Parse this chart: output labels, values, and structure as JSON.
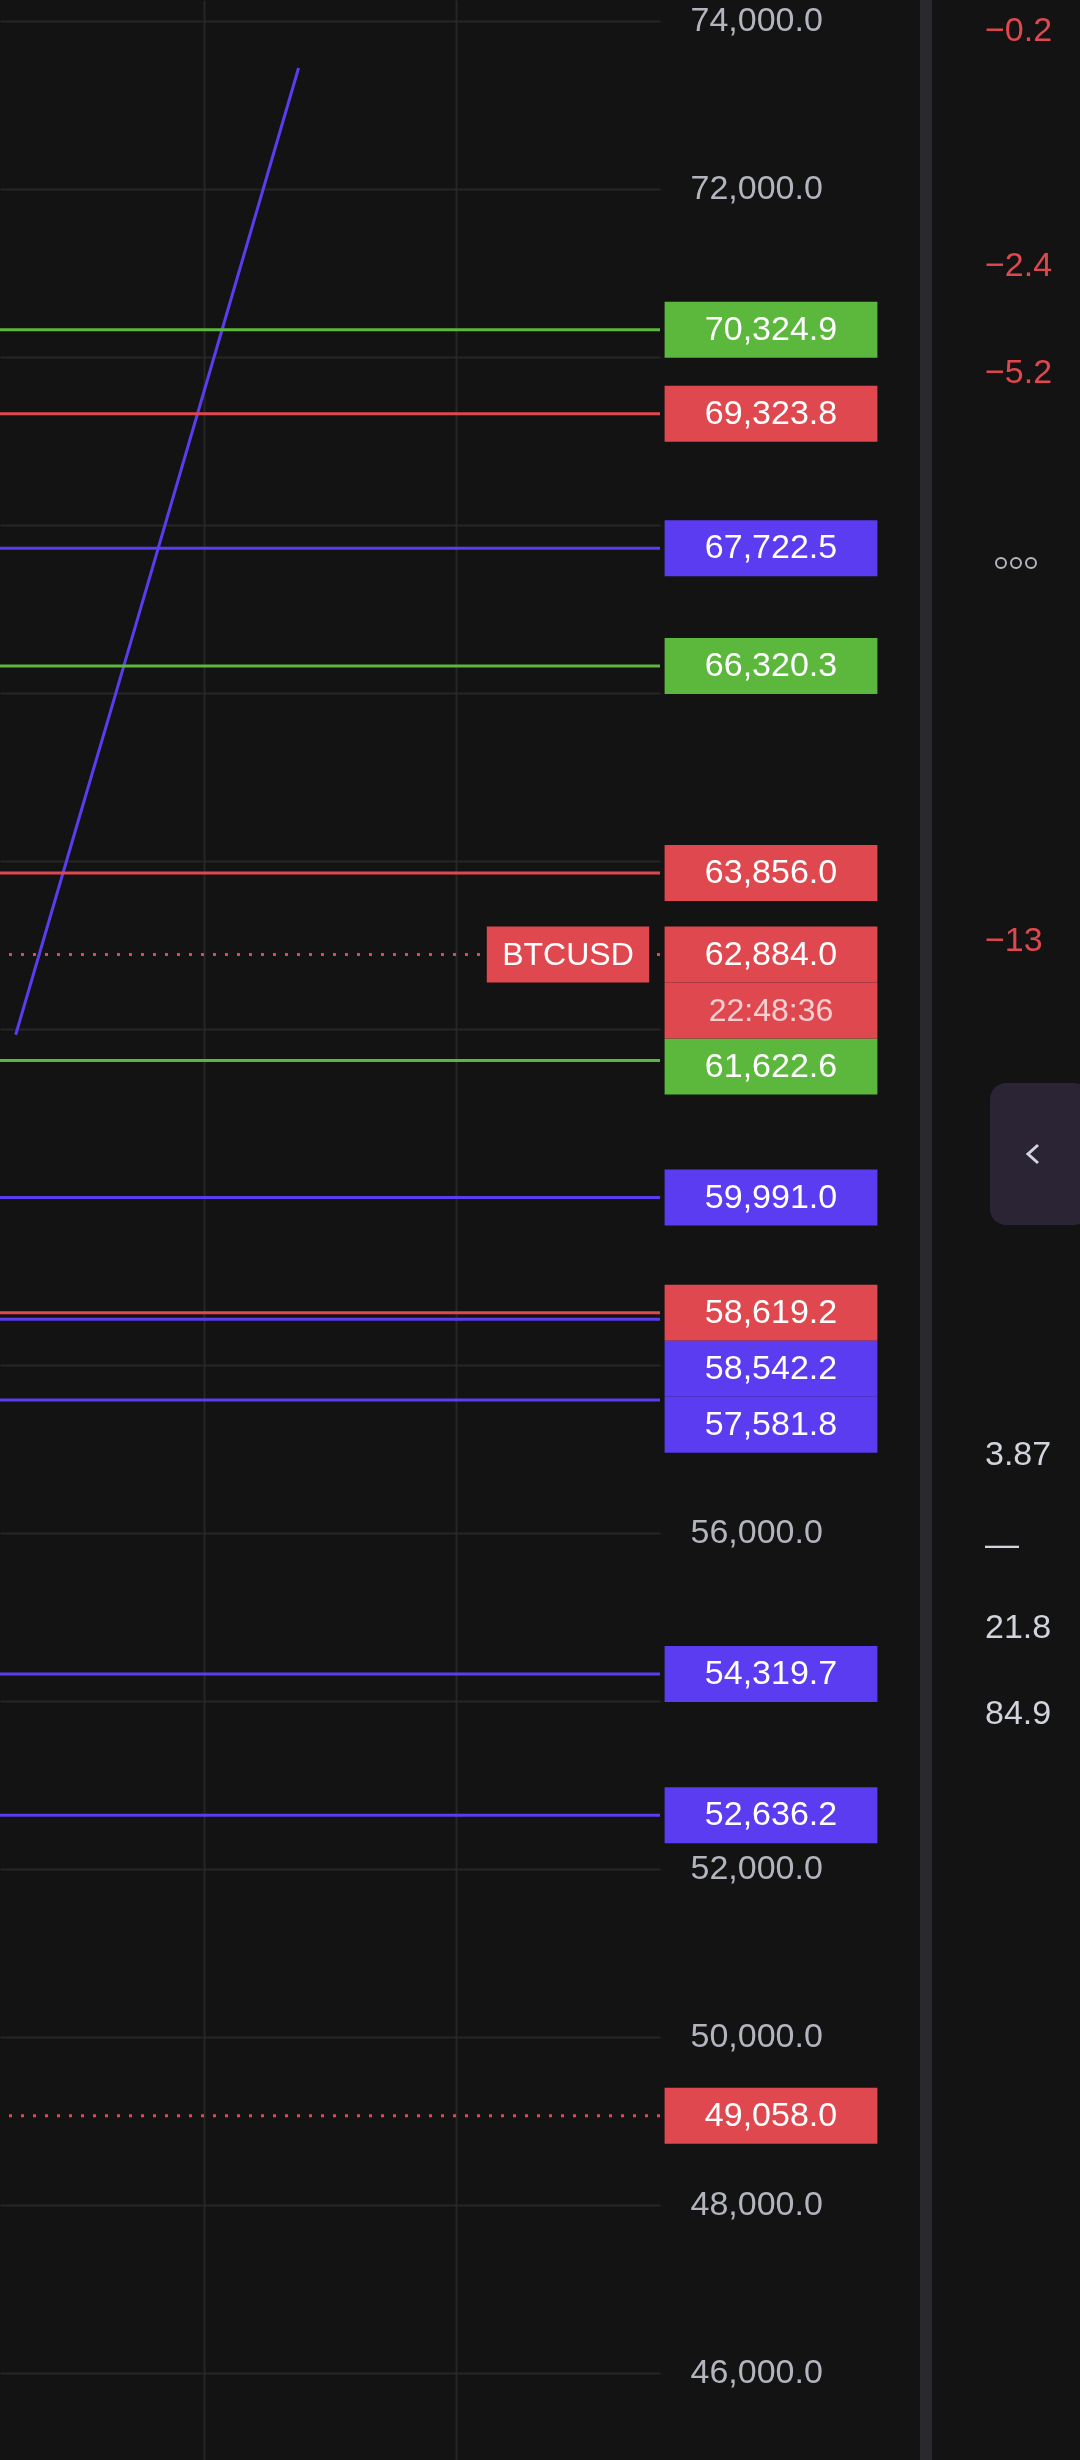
{
  "chart_data": {
    "type": "line",
    "ylim": [
      44960,
      74250
    ],
    "yticks": [
      {
        "value": 74000,
        "label": "74,000.0"
      },
      {
        "value": 72000,
        "label": "72,000.0"
      },
      {
        "value": 70000,
        "label": null
      },
      {
        "value": 68000,
        "label": null
      },
      {
        "value": 66000,
        "label": null
      },
      {
        "value": 64000,
        "label": null
      },
      {
        "value": 62000,
        "label": null
      },
      {
        "value": 60000,
        "label": null
      },
      {
        "value": 58000,
        "label": null
      },
      {
        "value": 56000,
        "label": "56,000.0"
      },
      {
        "value": 54000,
        "label": null
      },
      {
        "value": 52000,
        "label": "52,000.0"
      },
      {
        "value": 50000,
        "label": "50,000.0"
      },
      {
        "value": 48000,
        "label": "48,000.0"
      },
      {
        "value": 46000,
        "label": "46,000.0"
      }
    ],
    "categories": [
      null,
      null,
      null,
      null,
      null,
      null,
      null,
      null,
      null,
      null,
      null,
      null,
      null,
      null,
      null,
      null,
      null,
      null,
      null,
      null,
      null
    ],
    "tick_labels": "y",
    "grid": true,
    "series": [
      {
        "color": "#5b3cf0",
        "values": [
          61930,
          63210,
          64490,
          65760,
          67040,
          68320,
          69600,
          70880,
          72160,
          73440,
          null,
          null,
          null,
          null,
          null,
          null,
          null,
          null,
          null,
          null,
          null
        ]
      }
    ],
    "ref_lines": [
      {
        "axis": "y",
        "value": 70324.9,
        "label": "70,324.9",
        "color": "#5cb83c",
        "line_style": "solid"
      },
      {
        "axis": "y",
        "value": 69323.8,
        "label": "69,323.8",
        "color": "#e0484f",
        "line_style": "solid"
      },
      {
        "axis": "y",
        "value": 67722.5,
        "label": "67,722.5",
        "color": "#5b3cf0",
        "line_style": "solid"
      },
      {
        "axis": "y",
        "value": 66320.3,
        "label": "66,320.3",
        "color": "#5cb83c",
        "line_style": "solid"
      },
      {
        "axis": "y",
        "value": 63856.0,
        "label": "63,856.0",
        "color": "#e0484f",
        "line_style": "solid"
      },
      {
        "axis": "y",
        "value": 62884.0,
        "label": "62,884.0",
        "color": "#e0484f",
        "line_style": "dotted"
      },
      {
        "axis": "y",
        "value": 61622.6,
        "label": "61,622.6",
        "color": "#5cb83c",
        "line_style": "solid"
      },
      {
        "axis": "y",
        "value": 59991.0,
        "label": "59,991.0",
        "color": "#5b3cf0",
        "line_style": "solid"
      },
      {
        "axis": "y",
        "value": 58619.2,
        "label": "58,619.2",
        "color": "#e0484f",
        "line_style": "solid"
      },
      {
        "axis": "y",
        "value": 58542.2,
        "label": "58,542.2",
        "color": "#5b3cf0",
        "line_style": "solid"
      },
      {
        "axis": "y",
        "value": 57581.8,
        "label": "57,581.8",
        "color": "#5b3cf0",
        "line_style": "solid"
      },
      {
        "axis": "y",
        "value": 54319.7,
        "label": "54,319.7",
        "color": "#5b3cf0",
        "line_style": "solid"
      },
      {
        "axis": "y",
        "value": 52636.2,
        "label": "52,636.2",
        "color": "#5b3cf0",
        "line_style": "solid"
      },
      {
        "axis": "y",
        "value": 49058.0,
        "label": "49,058.0",
        "color": "#e0484f",
        "line_style": "dotted"
      }
    ],
    "annotations": [
      {
        "text": "BTCUSD",
        "y": 62884
      },
      "22:48:36",
      "−0.2",
      "−2.4",
      "−5.2",
      "−13",
      "3.87",
      "—",
      "21.8",
      "84.9"
    ]
  }
}
